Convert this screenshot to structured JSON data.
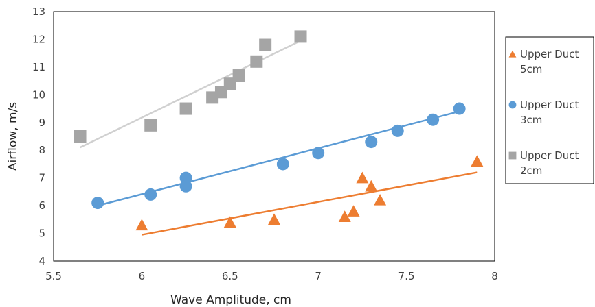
{
  "chart_data": {
    "type": "scatter",
    "title": "",
    "xlabel": "Wave Amplitude, cm",
    "ylabel": "Airflow, m/s",
    "xlim": [
      5.5,
      8
    ],
    "ylim": [
      4,
      13
    ],
    "xticks": [
      "5.5",
      "6",
      "6.5",
      "7",
      "7.5",
      "8"
    ],
    "yticks": [
      "4",
      "5",
      "6",
      "7",
      "8",
      "9",
      "10",
      "11",
      "12",
      "13"
    ],
    "grid": false,
    "legend_position": "right",
    "series": [
      {
        "name_lines": [
          "Upper Duct",
          "5cm"
        ],
        "marker": "triangle",
        "color": "#ED7D31",
        "points": [
          [
            6.0,
            5.3
          ],
          [
            6.5,
            5.4
          ],
          [
            6.75,
            5.5
          ],
          [
            7.15,
            5.6
          ],
          [
            7.2,
            5.8
          ],
          [
            7.25,
            7.0
          ],
          [
            7.3,
            6.7
          ],
          [
            7.35,
            6.2
          ],
          [
            7.9,
            7.6
          ]
        ],
        "trendline": [
          [
            6.0,
            4.95
          ],
          [
            7.9,
            7.2
          ]
        ]
      },
      {
        "name_lines": [
          "Upper Duct",
          "3cm"
        ],
        "marker": "circle",
        "color": "#5B9BD5",
        "points": [
          [
            5.75,
            6.1
          ],
          [
            6.05,
            6.4
          ],
          [
            6.25,
            7.0
          ],
          [
            6.25,
            6.7
          ],
          [
            6.8,
            7.5
          ],
          [
            7.0,
            7.9
          ],
          [
            7.3,
            8.3
          ],
          [
            7.45,
            8.7
          ],
          [
            7.65,
            9.1
          ],
          [
            7.8,
            9.5
          ]
        ],
        "trendline": [
          [
            5.75,
            6.0
          ],
          [
            7.8,
            9.4
          ]
        ]
      },
      {
        "name_lines": [
          "Upper Duct",
          "2cm"
        ],
        "marker": "square",
        "color": "#A5A5A5",
        "points": [
          [
            5.65,
            8.5
          ],
          [
            6.05,
            8.9
          ],
          [
            6.25,
            9.5
          ],
          [
            6.4,
            9.9
          ],
          [
            6.45,
            10.1
          ],
          [
            6.5,
            10.4
          ],
          [
            6.55,
            10.7
          ],
          [
            6.65,
            11.2
          ],
          [
            6.7,
            11.8
          ],
          [
            6.9,
            12.1
          ]
        ],
        "trendline": [
          [
            5.65,
            8.1
          ],
          [
            6.9,
            11.95
          ]
        ],
        "trendline_color": "#D0D0D0"
      }
    ]
  }
}
